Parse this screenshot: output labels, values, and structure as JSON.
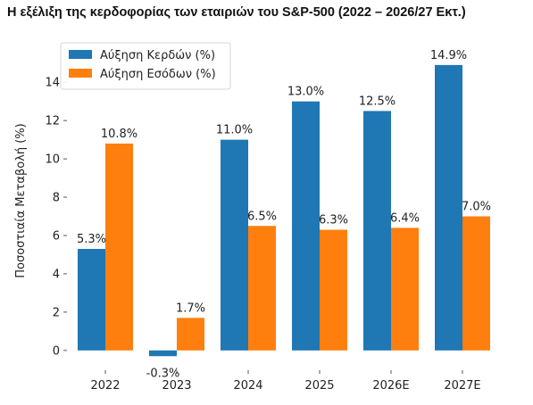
{
  "header": {
    "title": "Η εξέλιξη της κερδοφορίας των εταιριών του S&P-500 (2022 – 2026/27 Εκτ.)"
  },
  "chart_data": {
    "type": "bar",
    "title": "Η εξέλιξη της κερδοφορίας των εταιριών του S&P-500 (2022 – 2026/27 Εκτ.)",
    "xlabel": "",
    "ylabel": "Ποσοστιαία Μεταβολή (%)",
    "categories": [
      "2022",
      "2023",
      "2024",
      "2025",
      "2026E",
      "2027E"
    ],
    "series": [
      {
        "name": "Αύξηση Κερδών (%)",
        "color": "#1f77b4",
        "values": [
          5.3,
          -0.3,
          11.0,
          13.0,
          12.5,
          14.9
        ],
        "labels": [
          "5.3%",
          "-0.3%",
          "11.0%",
          "13.0%",
          "12.5%",
          "14.9%"
        ]
      },
      {
        "name": "Αύξηση Εσόδων (%)",
        "color": "#ff7f0e",
        "values": [
          10.8,
          1.7,
          6.5,
          6.3,
          6.4,
          7.0
        ],
        "labels": [
          "10.8%",
          "1.7%",
          "6.5%",
          "6.3%",
          "6.4%",
          "7.0%"
        ]
      }
    ],
    "yticks": [
      0,
      2,
      4,
      6,
      8,
      10,
      12,
      14
    ],
    "ylim": [
      -0.8,
      15.5
    ],
    "grid": false,
    "legend": "top-left"
  }
}
